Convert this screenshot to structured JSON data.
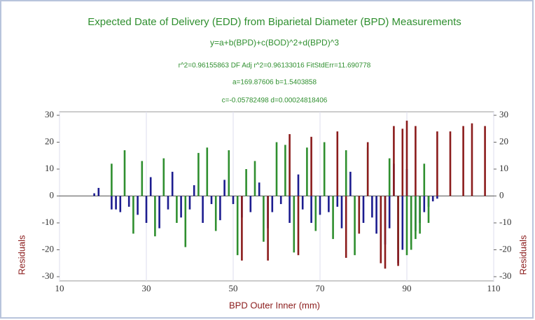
{
  "chart_data": {
    "type": "residual",
    "title": "Expected Date of Delivery (EDD) from Biparietal Diameter (BPD)   Measurements",
    "subtitles": [
      "y=a+b(BPD)+c(BOD)^2+d(BPD)^3",
      "r^2=0.96155863  DF Adj r^2=0.96133016  FitStdErr=11.690778",
      "a=169.87606 b=1.5403858",
      "c=-0.05782498 d=0.00024818406"
    ],
    "x_label": "BPD Outer Inner (mm)",
    "y_label": "Residuals",
    "y2_label": "Residuals",
    "xlim": [
      10,
      110
    ],
    "xticks": [
      10,
      30,
      50,
      70,
      90,
      110
    ],
    "ylim": [
      -30,
      30
    ],
    "yticks": [
      -30,
      -20,
      -10,
      0,
      10,
      20,
      30
    ],
    "y2lim": [
      -30,
      30
    ],
    "y2ticks": [
      -30,
      -20,
      -10,
      0,
      10,
      20,
      30
    ],
    "grid": true,
    "series": [
      {
        "color": "#1c1c8f",
        "x": [
          18,
          19,
          22,
          23,
          24,
          26,
          28,
          30,
          31,
          33,
          35,
          36,
          38,
          40,
          41,
          43,
          45,
          47,
          48,
          50,
          52,
          54,
          56,
          58,
          59,
          61,
          63,
          65,
          66,
          68,
          70,
          72,
          74,
          75,
          77,
          79,
          80,
          82,
          83,
          85,
          86,
          87,
          88,
          89,
          90,
          91,
          92,
          93,
          94,
          95,
          96,
          97
        ],
        "values": [
          1,
          3,
          -5,
          -5,
          -6,
          -4,
          -7,
          -10,
          7,
          -12,
          -5,
          9,
          -8,
          -5,
          4,
          -10,
          -3,
          -9,
          6,
          -3,
          -8,
          -6,
          5,
          -12,
          -6,
          -3,
          -10,
          8,
          -5,
          -10,
          -7,
          -6,
          -4,
          -12,
          9,
          -5,
          -10,
          -8,
          -14,
          -18,
          -12,
          12,
          -25,
          -20,
          10,
          -18,
          -13,
          -10,
          -6,
          -4,
          -2,
          -1
        ]
      },
      {
        "color": "#2f8f2f",
        "x": [
          22,
          25,
          27,
          29,
          32,
          34,
          37,
          39,
          42,
          44,
          46,
          49,
          51,
          53,
          55,
          57,
          60,
          62,
          64,
          67,
          69,
          71,
          73,
          76,
          78,
          81,
          84,
          86,
          88,
          90,
          91,
          92,
          93,
          94,
          95
        ],
        "values": [
          12,
          17,
          -14,
          13,
          -15,
          14,
          -10,
          -19,
          16,
          18,
          -13,
          17,
          -22,
          10,
          13,
          -17,
          20,
          19,
          -21,
          18,
          -13,
          20,
          -16,
          17,
          -22,
          18,
          -20,
          14,
          -20,
          -22,
          -20,
          -16,
          -14,
          12,
          -10
        ]
      },
      {
        "color": "#8b1c1c",
        "x": [
          52,
          58,
          63,
          65,
          68,
          74,
          76,
          79,
          81,
          84,
          85,
          87,
          88,
          89,
          90,
          92,
          97,
          100,
          103,
          105,
          108
        ],
        "values": [
          -24,
          -24,
          23,
          -22,
          22,
          24,
          -23,
          -14,
          20,
          -25,
          -27,
          26,
          -26,
          25,
          28,
          26,
          24,
          24,
          26,
          27,
          26
        ]
      }
    ]
  }
}
